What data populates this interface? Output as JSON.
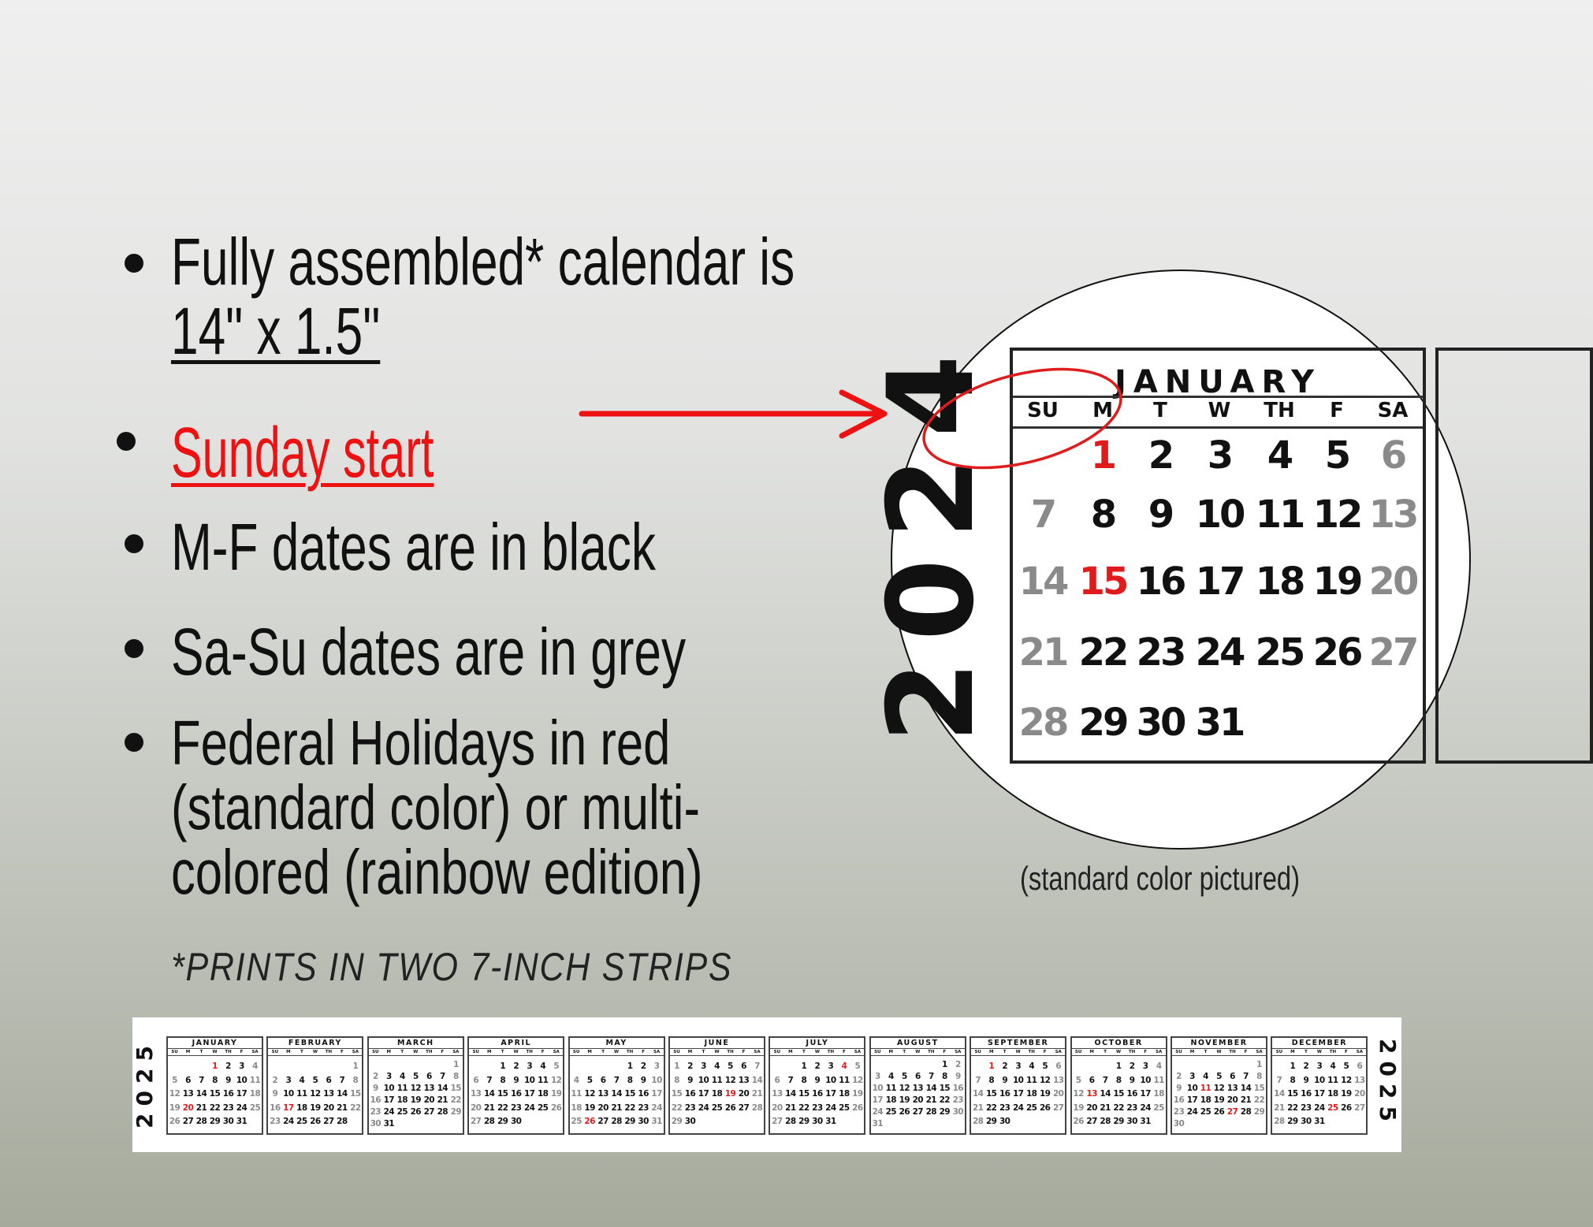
{
  "bullets": {
    "b1_line1": "Fully assembled* calendar is",
    "b1_line2": "14\" x 1.5\"",
    "b2": "Sunday start",
    "b3": "M-F dates are in black",
    "b4": "Sa-Su dates are in grey",
    "b5_line1": "Federal Holidays in red",
    "b5_line2": "(standard color) or multi-",
    "b5_line3": "colored (rainbow edition)"
  },
  "footnote": "*PRINTS IN TWO 7-INCH STRIPS",
  "caption": "(standard color pictured)",
  "colors": {
    "weekday": "#111111",
    "weekend": "#8a8a8a",
    "holiday": "#e01b1b",
    "accent_red": "#ee1111"
  },
  "day_headers": [
    "SU",
    "M",
    "T",
    "W",
    "TH",
    "F",
    "SA"
  ],
  "zoom_detail": {
    "year": "2024",
    "month": {
      "name": "JANUARY",
      "first_weekday": 1,
      "days": 31,
      "holidays": [
        1,
        15
      ]
    },
    "highlight": "ellipse-around-su-m-headers"
  },
  "strip": {
    "year": "2025",
    "months": [
      {
        "name": "JANUARY",
        "first_weekday": 3,
        "days": 31,
        "holidays": [
          1,
          20
        ]
      },
      {
        "name": "FEBRUARY",
        "first_weekday": 6,
        "days": 28,
        "holidays": [
          17
        ]
      },
      {
        "name": "MARCH",
        "first_weekday": 6,
        "days": 31,
        "holidays": []
      },
      {
        "name": "APRIL",
        "first_weekday": 2,
        "days": 30,
        "holidays": []
      },
      {
        "name": "MAY",
        "first_weekday": 4,
        "days": 31,
        "holidays": [
          26
        ]
      },
      {
        "name": "JUNE",
        "first_weekday": 0,
        "days": 30,
        "holidays": [
          19
        ]
      },
      {
        "name": "JULY",
        "first_weekday": 2,
        "days": 31,
        "holidays": [
          4
        ]
      },
      {
        "name": "AUGUST",
        "first_weekday": 5,
        "days": 31,
        "holidays": []
      },
      {
        "name": "SEPTEMBER",
        "first_weekday": 1,
        "days": 30,
        "holidays": [
          1
        ]
      },
      {
        "name": "OCTOBER",
        "first_weekday": 3,
        "days": 31,
        "holidays": [
          13
        ]
      },
      {
        "name": "NOVEMBER",
        "first_weekday": 6,
        "days": 30,
        "holidays": [
          11,
          27
        ]
      },
      {
        "name": "DECEMBER",
        "first_weekday": 1,
        "days": 31,
        "holidays": [
          25
        ]
      }
    ]
  }
}
